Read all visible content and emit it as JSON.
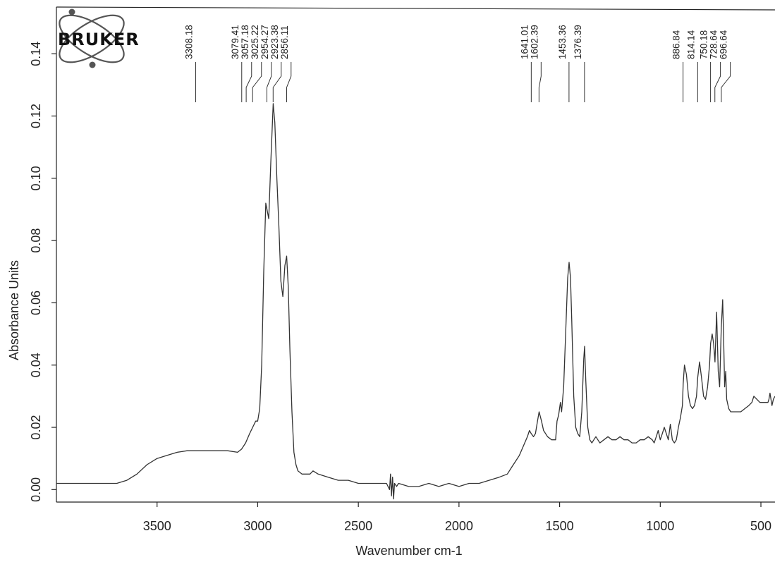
{
  "branding": {
    "logo_text": "BRUKER"
  },
  "chart_data": {
    "type": "line",
    "xlabel": "Wavenumber cm-1",
    "ylabel": "Absorbance Units",
    "xlim": [
      4000,
      430
    ],
    "ylim": [
      -0.004,
      0.155
    ],
    "x_ticks": [
      3500,
      3000,
      2500,
      2000,
      1500,
      1000,
      500
    ],
    "y_ticks": [
      0.0,
      0.02,
      0.04,
      0.06,
      0.08,
      0.1,
      0.12,
      0.14
    ],
    "y_tick_labels": [
      "0.00",
      "0.02",
      "0.04",
      "0.06",
      "0.08",
      "0.10",
      "0.12",
      "0.14"
    ],
    "grid": false,
    "peak_labels": [
      {
        "label": "3308.18",
        "value": 3308.18
      },
      {
        "label": "3079.41",
        "value": 3079.41
      },
      {
        "label": "3057.18",
        "value": 3057.18
      },
      {
        "label": "3025.22",
        "value": 3025.22
      },
      {
        "label": "2954.27",
        "value": 2954.27
      },
      {
        "label": "2923.38",
        "value": 2923.38
      },
      {
        "label": "2856.11",
        "value": 2856.11
      },
      {
        "label": "1641.01",
        "value": 1641.01
      },
      {
        "label": "1602.39",
        "value": 1602.39
      },
      {
        "label": "1453.36",
        "value": 1453.36
      },
      {
        "label": "1376.39",
        "value": 1376.39
      },
      {
        "label": "886.84",
        "value": 886.84
      },
      {
        "label": "814.14",
        "value": 814.14
      },
      {
        "label": "750.18",
        "value": 750.18
      },
      {
        "label": "728.64",
        "value": 728.64
      },
      {
        "label": "696.64",
        "value": 696.64
      }
    ],
    "series": [
      {
        "x": [
          4000,
          3900,
          3800,
          3750,
          3700,
          3650,
          3600,
          3550,
          3500,
          3450,
          3400,
          3350,
          3300,
          3250,
          3200,
          3150,
          3100,
          3080,
          3060,
          3040,
          3025,
          3010,
          3000,
          2990,
          2980,
          2970,
          2960,
          2954,
          2945,
          2935,
          2923,
          2915,
          2905,
          2895,
          2885,
          2875,
          2865,
          2856,
          2848,
          2840,
          2830,
          2820,
          2810,
          2800,
          2780,
          2760,
          2740,
          2725,
          2700,
          2650,
          2600,
          2550,
          2500,
          2450,
          2400,
          2360,
          2345,
          2340,
          2335,
          2330,
          2325,
          2320,
          2310,
          2300,
          2250,
          2200,
          2150,
          2100,
          2050,
          2000,
          1950,
          1900,
          1850,
          1800,
          1760,
          1740,
          1720,
          1700,
          1680,
          1660,
          1650,
          1641,
          1630,
          1620,
          1610,
          1602,
          1590,
          1580,
          1560,
          1540,
          1520,
          1513,
          1505,
          1496,
          1490,
          1480,
          1470,
          1460,
          1453,
          1446,
          1440,
          1430,
          1420,
          1410,
          1400,
          1390,
          1380,
          1376,
          1370,
          1360,
          1350,
          1340,
          1330,
          1320,
          1310,
          1300,
          1280,
          1260,
          1240,
          1220,
          1200,
          1180,
          1160,
          1140,
          1120,
          1100,
          1080,
          1060,
          1040,
          1030,
          1020,
          1010,
          1000,
          990,
          980,
          970,
          960,
          950,
          940,
          930,
          920,
          910,
          900,
          890,
          886,
          880,
          870,
          860,
          850,
          840,
          830,
          820,
          814,
          805,
          795,
          785,
          775,
          765,
          755,
          750,
          742,
          735,
          728,
          720,
          712,
          705,
          697,
          690,
          685,
          680,
          675,
          670,
          660,
          650,
          640,
          620,
          600,
          580,
          560,
          545,
          535,
          520,
          505,
          490,
          475,
          465,
          460,
          455,
          445,
          438,
          430
        ],
        "y": [
          0.002,
          0.002,
          0.002,
          0.002,
          0.002,
          0.003,
          0.005,
          0.008,
          0.01,
          0.011,
          0.012,
          0.0125,
          0.0125,
          0.0125,
          0.0125,
          0.0125,
          0.012,
          0.013,
          0.015,
          0.018,
          0.02,
          0.022,
          0.022,
          0.026,
          0.04,
          0.07,
          0.092,
          0.09,
          0.087,
          0.105,
          0.124,
          0.118,
          0.1,
          0.085,
          0.067,
          0.062,
          0.072,
          0.075,
          0.065,
          0.045,
          0.025,
          0.012,
          0.008,
          0.006,
          0.005,
          0.005,
          0.005,
          0.006,
          0.005,
          0.004,
          0.003,
          0.003,
          0.002,
          0.002,
          0.002,
          0.002,
          0.0,
          0.005,
          -0.002,
          0.004,
          -0.003,
          0.002,
          0.001,
          0.002,
          0.001,
          0.001,
          0.002,
          0.001,
          0.002,
          0.001,
          0.002,
          0.002,
          0.003,
          0.004,
          0.005,
          0.007,
          0.009,
          0.011,
          0.014,
          0.017,
          0.019,
          0.018,
          0.017,
          0.018,
          0.022,
          0.025,
          0.022,
          0.019,
          0.017,
          0.016,
          0.016,
          0.022,
          0.024,
          0.028,
          0.025,
          0.033,
          0.05,
          0.068,
          0.073,
          0.068,
          0.055,
          0.03,
          0.02,
          0.018,
          0.017,
          0.025,
          0.042,
          0.046,
          0.035,
          0.02,
          0.016,
          0.015,
          0.016,
          0.017,
          0.016,
          0.015,
          0.016,
          0.017,
          0.016,
          0.016,
          0.017,
          0.016,
          0.016,
          0.015,
          0.015,
          0.016,
          0.016,
          0.017,
          0.016,
          0.015,
          0.017,
          0.019,
          0.016,
          0.018,
          0.02,
          0.018,
          0.016,
          0.021,
          0.016,
          0.015,
          0.016,
          0.02,
          0.023,
          0.027,
          0.034,
          0.04,
          0.037,
          0.03,
          0.027,
          0.026,
          0.027,
          0.03,
          0.036,
          0.041,
          0.036,
          0.03,
          0.029,
          0.033,
          0.04,
          0.047,
          0.05,
          0.047,
          0.041,
          0.057,
          0.038,
          0.033,
          0.052,
          0.061,
          0.048,
          0.033,
          0.038,
          0.029,
          0.026,
          0.025,
          0.025,
          0.025,
          0.025,
          0.026,
          0.027,
          0.028,
          0.03,
          0.029,
          0.028,
          0.028,
          0.028,
          0.028,
          0.029,
          0.031,
          0.027,
          0.029,
          0.03
        ]
      }
    ]
  }
}
